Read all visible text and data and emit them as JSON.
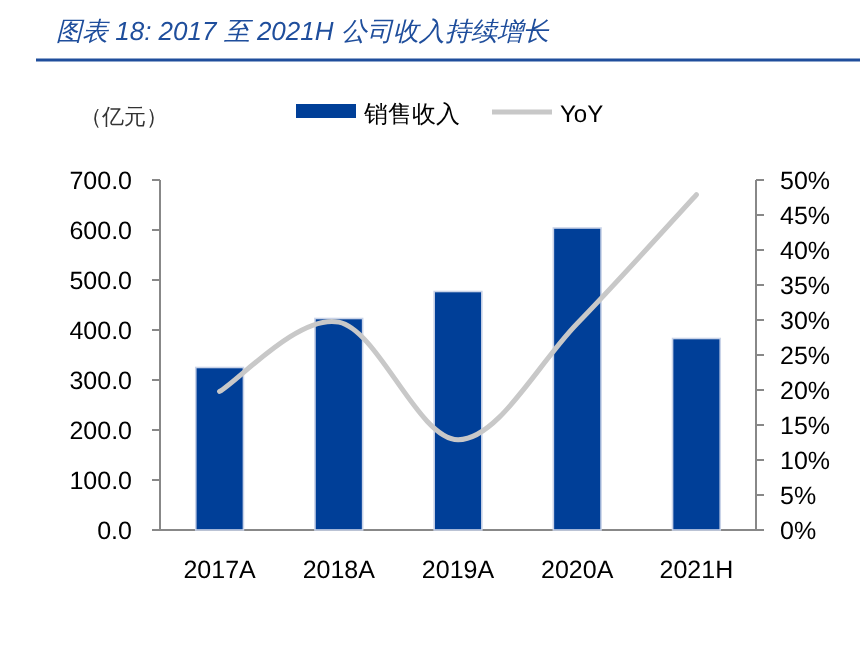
{
  "chart_data": {
    "type": "bar",
    "title": "图表 18:  2017 至 2021H 公司收入持续增长",
    "ylabel": "（亿元）",
    "categories": [
      "2017A",
      "2018A",
      "2019A",
      "2020A",
      "2021H"
    ],
    "series": [
      {
        "name": "销售收入",
        "color": "#003f98",
        "values": [
          325,
          423,
          477,
          604,
          383
        ]
      },
      {
        "name": "YoY",
        "type": "line",
        "axis": "y2",
        "color": "#c8c8c8",
        "values": [
          19.8,
          29.7,
          12.9,
          29.5,
          47.9
        ]
      }
    ],
    "ylim": [
      0,
      700
    ],
    "yticks": [
      {
        "value": 0,
        "label": "0.0"
      },
      {
        "value": 100,
        "label": "100.0"
      },
      {
        "value": 200,
        "label": "200.0"
      },
      {
        "value": 300,
        "label": "300.0"
      },
      {
        "value": 400,
        "label": "400.0"
      },
      {
        "value": 500,
        "label": "500.0"
      },
      {
        "value": 600,
        "label": "600.0"
      },
      {
        "value": 700,
        "label": "700.0"
      }
    ],
    "y2lim": [
      0,
      50
    ],
    "y2ticks": [
      {
        "value": 0,
        "label": "0%"
      },
      {
        "value": 5,
        "label": "5%"
      },
      {
        "value": 10,
        "label": "10%"
      },
      {
        "value": 15,
        "label": "15%"
      },
      {
        "value": 20,
        "label": "20%"
      },
      {
        "value": 25,
        "label": "25%"
      },
      {
        "value": 30,
        "label": "30%"
      },
      {
        "value": 35,
        "label": "35%"
      },
      {
        "value": 40,
        "label": "40%"
      },
      {
        "value": 45,
        "label": "45%"
      },
      {
        "value": 50,
        "label": "50%"
      }
    ],
    "grid": false,
    "legend": "top"
  }
}
